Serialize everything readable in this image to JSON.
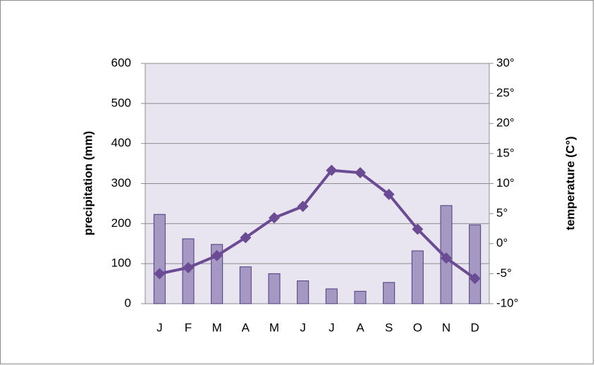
{
  "chart_data": {
    "type": "bar-line",
    "categories": [
      "J",
      "F",
      "M",
      "A",
      "M",
      "J",
      "J",
      "A",
      "S",
      "O",
      "N",
      "D"
    ],
    "ylabel": "precipitation (mm)",
    "y2label": "temperature (C°)",
    "ylim": [
      0,
      600
    ],
    "yticks": [
      0,
      100,
      200,
      300,
      400,
      500,
      600
    ],
    "y2lim": [
      -10,
      30
    ],
    "y2ticks": [
      {
        "value": -10,
        "label": "-10°"
      },
      {
        "value": -5,
        "label": "-5°"
      },
      {
        "value": 0,
        "label": "0°"
      },
      {
        "value": 5,
        "label": "5°"
      },
      {
        "value": 10,
        "label": "10°"
      },
      {
        "value": 15,
        "label": "15°"
      },
      {
        "value": 20,
        "label": "20°"
      },
      {
        "value": 25,
        "label": "25°"
      },
      {
        "value": 30,
        "label": "30°"
      }
    ],
    "grid": true,
    "series": [
      {
        "type": "bar",
        "color": "#a599c4",
        "values": [
          223,
          162,
          148,
          92,
          75,
          57,
          37,
          31,
          53,
          132,
          245,
          197
        ]
      },
      {
        "type": "line",
        "axis": "y2",
        "color": "#6b4c94",
        "values": [
          -5,
          -4,
          -2,
          1,
          4.3,
          6.2,
          12.2,
          11.8,
          8.2,
          2.4,
          -2.4,
          -5.8
        ]
      }
    ]
  }
}
